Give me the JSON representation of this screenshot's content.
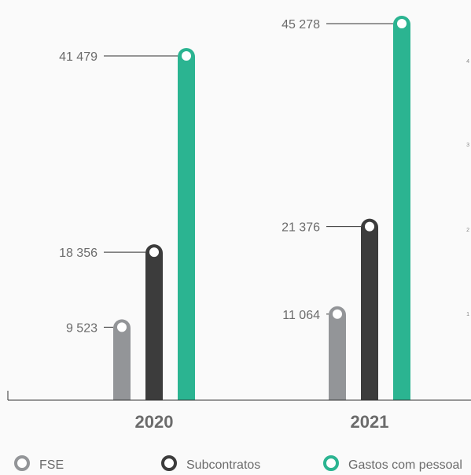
{
  "chart_data": {
    "type": "bar",
    "categories": [
      "2020",
      "2021"
    ],
    "series": [
      {
        "name": "FSE",
        "values": [
          9523,
          11064
        ],
        "color": "#939598"
      },
      {
        "name": "Subcontratos",
        "values": [
          18356,
          21376
        ],
        "color": "#3c3c3c"
      },
      {
        "name": "Gastos com pessoal",
        "values": [
          41479,
          45278
        ],
        "color": "#2bb491"
      }
    ],
    "value_labels": [
      [
        "9 523",
        "11 064"
      ],
      [
        "18 356",
        "21 376"
      ],
      [
        "41 479",
        "45 278"
      ]
    ],
    "ylim": [
      0,
      45278
    ],
    "legend_position": "bottom",
    "partial_edge_ticks": [
      "4",
      "3",
      "2",
      "1"
    ],
    "grid": false
  }
}
